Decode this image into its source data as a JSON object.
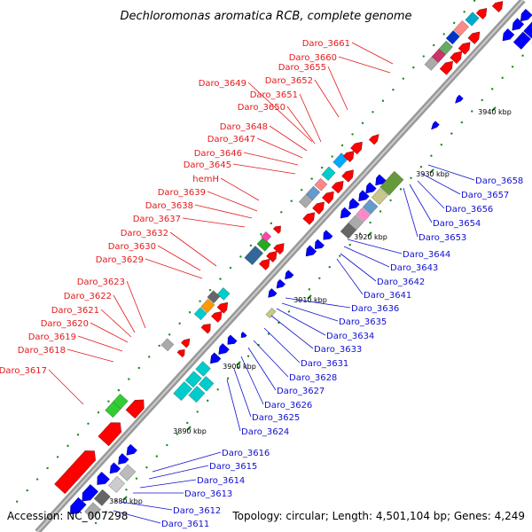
{
  "title": "Dechloromonas aromatica RCB, complete genome",
  "footer": {
    "accession": "Accession: NC_007298",
    "summary": "Topology: circular; Length: 4,501,104 bp; Genes: 4,249"
  },
  "colors": {
    "forward_label": "#e41a1c",
    "reverse_label": "#1010d0",
    "forward_gene": "#ff0000",
    "reverse_gene": "#0000ff",
    "backbone": "#999999",
    "tick": "#1a8c1a"
  },
  "ticks": [
    {
      "label": "3880 kbp"
    },
    {
      "label": "3890 kbp"
    },
    {
      "label": "3900 kbp"
    },
    {
      "label": "3910 kbp"
    },
    {
      "label": "3920 kbp"
    },
    {
      "label": "3930 kbp"
    },
    {
      "label": "3940 kbp"
    }
  ],
  "forward_labels": [
    "Daro_3661",
    "Daro_3660",
    "Daro_3655",
    "Daro_3652",
    "Daro_3649",
    "Daro_3651",
    "Daro_3650",
    "Daro_3648",
    "Daro_3647",
    "Daro_3646",
    "Daro_3645",
    "hemH",
    "Daro_3639",
    "Daro_3638",
    "Daro_3637",
    "Daro_3632",
    "Daro_3630",
    "Daro_3629",
    "Daro_3623",
    "Daro_3622",
    "Daro_3621",
    "Daro_3620",
    "Daro_3619",
    "Daro_3618",
    "Daro_3617"
  ],
  "reverse_labels": [
    "Daro_3658",
    "Daro_3657",
    "Daro_3656",
    "Daro_3654",
    "Daro_3653",
    "Daro_3644",
    "Daro_3643",
    "Daro_3642",
    "Daro_3641",
    "Daro_3636",
    "Daro_3635",
    "Daro_3634",
    "Daro_3633",
    "Daro_3631",
    "Daro_3628",
    "Daro_3627",
    "Daro_3626",
    "Daro_3625",
    "Daro_3624",
    "Daro_3616",
    "Daro_3615",
    "Daro_3614",
    "Daro_3613",
    "Daro_3612",
    "Daro_3611"
  ]
}
